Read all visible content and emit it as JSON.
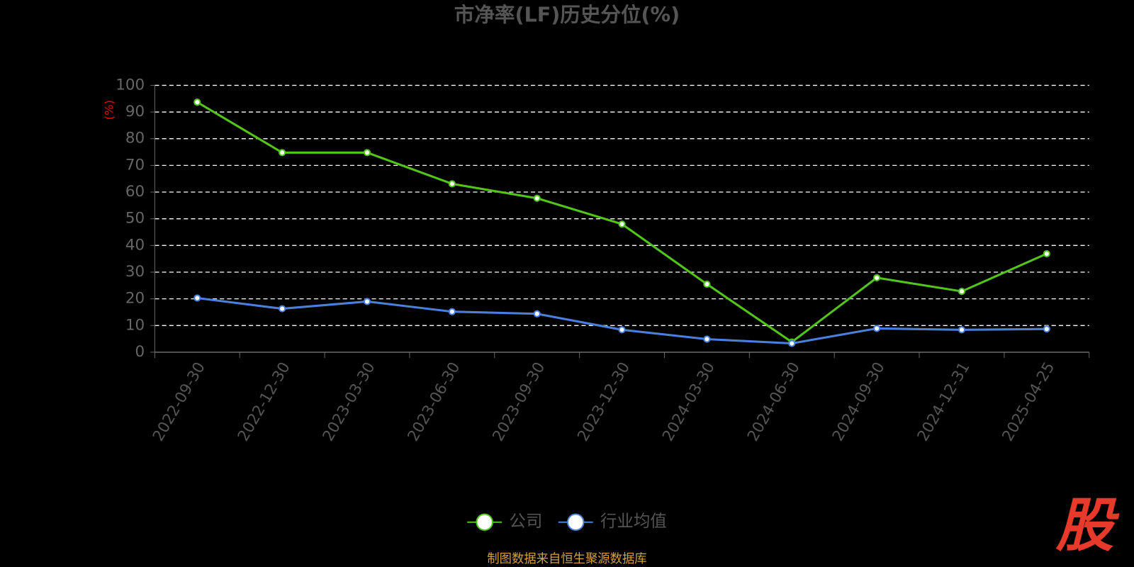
{
  "chart_data": {
    "type": "line",
    "title": "市净率(LF)历史分位(%)",
    "y_label": "(%)",
    "categories": [
      "2022-09-30",
      "2022-12-30",
      "2023-03-30",
      "2023-06-30",
      "2023-09-30",
      "2023-12-30",
      "2024-03-30",
      "2024-06-30",
      "2024-09-30",
      "2024-12-31",
      "2025-04-25"
    ],
    "series": [
      {
        "name": "公司",
        "color": "#52c41a",
        "values": [
          93.7,
          74.8,
          74.8,
          63.1,
          57.7,
          48.0,
          25.5,
          3.8,
          27.9,
          22.8,
          36.9
        ]
      },
      {
        "name": "行业均值",
        "color": "#4a7fdc",
        "values": [
          20.3,
          16.3,
          19.0,
          15.2,
          14.4,
          8.4,
          4.9,
          3.3,
          8.9,
          8.4,
          8.7
        ]
      }
    ],
    "ylim": [
      0,
      100
    ],
    "yticks": [
      0,
      10,
      20,
      30,
      40,
      50,
      60,
      70,
      80,
      90,
      100
    ],
    "grid": true,
    "source": "制图数据来自恒生聚源数据库",
    "watermark": "股"
  }
}
